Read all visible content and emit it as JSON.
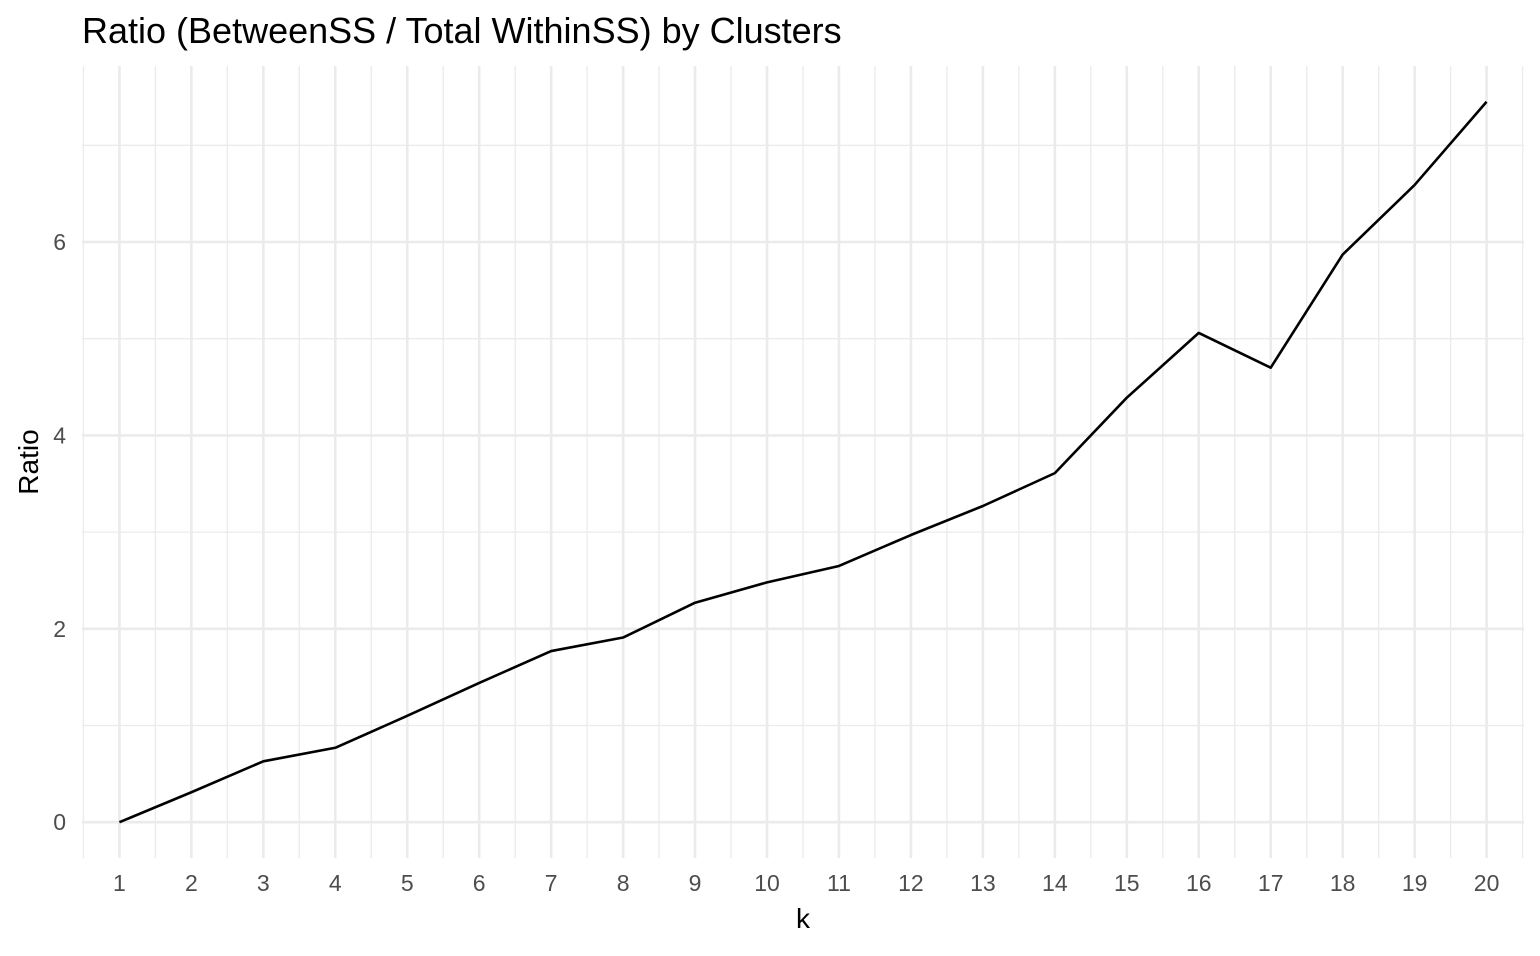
{
  "chart_data": {
    "type": "line",
    "title": "Ratio (BetweenSS / Total WithinSS) by Clusters",
    "xlabel": "k",
    "ylabel": "Ratio",
    "x": [
      1,
      2,
      3,
      4,
      5,
      6,
      7,
      8,
      9,
      10,
      11,
      12,
      13,
      14,
      15,
      16,
      17,
      18,
      19,
      20
    ],
    "x_tick_labels": [
      "1",
      "2",
      "3",
      "4",
      "5",
      "6",
      "7",
      "8",
      "9",
      "10",
      "11",
      "12",
      "13",
      "14",
      "15",
      "16",
      "17",
      "18",
      "19",
      "20"
    ],
    "series": [
      {
        "values": [
          0,
          0.31,
          0.63,
          0.77,
          1.1,
          1.44,
          1.77,
          1.91,
          2.27,
          2.48,
          2.65,
          2.97,
          3.27,
          3.61,
          4.39,
          5.06,
          4.7,
          5.87,
          6.59,
          7.45
        ]
      }
    ],
    "y_ticks": [
      0,
      2,
      4,
      6
    ],
    "y_tick_labels": [
      "0",
      "2",
      "4",
      "6"
    ],
    "xlim": [
      0.48,
      20.52
    ],
    "ylim": [
      -0.37,
      7.82
    ],
    "grid": true,
    "colors": {
      "line": "#000000",
      "grid": "#ebebeb",
      "background": "#ffffff"
    }
  }
}
